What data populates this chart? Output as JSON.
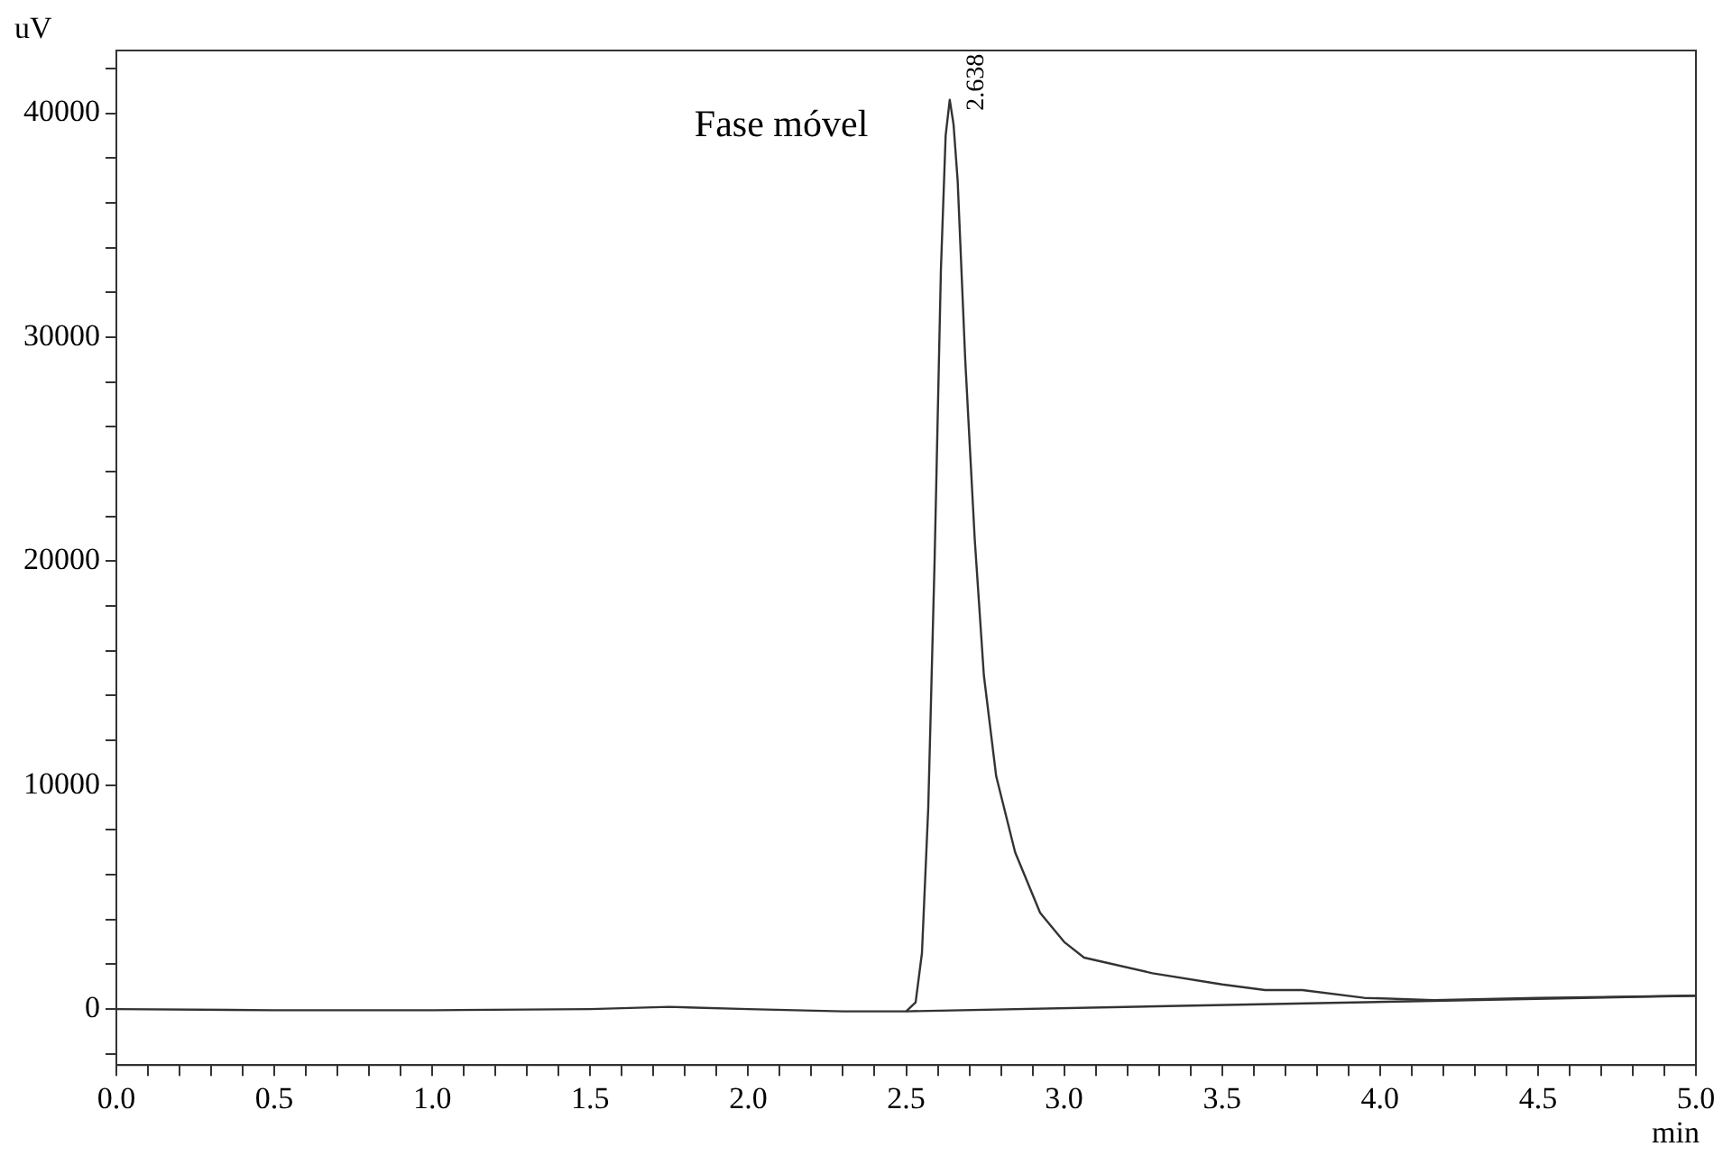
{
  "chart_data": {
    "type": "line",
    "xlabel": "min",
    "ylabel": "uV",
    "annotations": [
      "Fase móvel",
      {
        "text": "2.638",
        "x": 2.638,
        "y": 40600
      }
    ],
    "xlim": [
      0,
      5.0
    ],
    "ylim": [
      -2500,
      42800
    ],
    "xticks": [
      {
        "value": 0,
        "label": "0.0"
      },
      {
        "value": 0.1,
        "label": null
      },
      {
        "value": 0.2,
        "label": null
      },
      {
        "value": 0.3,
        "label": null
      },
      {
        "value": 0.4,
        "label": null
      },
      {
        "value": 0.5,
        "label": "0.5"
      },
      {
        "value": 0.6,
        "label": null
      },
      {
        "value": 0.7,
        "label": null
      },
      {
        "value": 0.8,
        "label": null
      },
      {
        "value": 0.9,
        "label": null
      },
      {
        "value": 1,
        "label": "1.0"
      },
      {
        "value": 1.1,
        "label": null
      },
      {
        "value": 1.2,
        "label": null
      },
      {
        "value": 1.3,
        "label": null
      },
      {
        "value": 1.4,
        "label": null
      },
      {
        "value": 1.5,
        "label": "1.5"
      },
      {
        "value": 1.6,
        "label": null
      },
      {
        "value": 1.7,
        "label": null
      },
      {
        "value": 1.8,
        "label": null
      },
      {
        "value": 1.9,
        "label": null
      },
      {
        "value": 2,
        "label": "2.0"
      },
      {
        "value": 2.1,
        "label": null
      },
      {
        "value": 2.2,
        "label": null
      },
      {
        "value": 2.3,
        "label": null
      },
      {
        "value": 2.4,
        "label": null
      },
      {
        "value": 2.5,
        "label": "2.5"
      },
      {
        "value": 2.6,
        "label": null
      },
      {
        "value": 2.7,
        "label": null
      },
      {
        "value": 2.8,
        "label": null
      },
      {
        "value": 2.9,
        "label": null
      },
      {
        "value": 3,
        "label": "3.0"
      },
      {
        "value": 3.1,
        "label": null
      },
      {
        "value": 3.2,
        "label": null
      },
      {
        "value": 3.3,
        "label": null
      },
      {
        "value": 3.4,
        "label": null
      },
      {
        "value": 3.5,
        "label": "3.5"
      },
      {
        "value": 3.6,
        "label": null
      },
      {
        "value": 3.7,
        "label": null
      },
      {
        "value": 3.8,
        "label": null
      },
      {
        "value": 3.9,
        "label": null
      },
      {
        "value": 4,
        "label": "4.0"
      },
      {
        "value": 4.1,
        "label": null
      },
      {
        "value": 4.2,
        "label": null
      },
      {
        "value": 4.3,
        "label": null
      },
      {
        "value": 4.4,
        "label": null
      },
      {
        "value": 4.5,
        "label": "4.5"
      },
      {
        "value": 4.6,
        "label": null
      },
      {
        "value": 4.7,
        "label": null
      },
      {
        "value": 4.8,
        "label": null
      },
      {
        "value": 4.9,
        "label": null
      },
      {
        "value": 5,
        "label": "5.0"
      }
    ],
    "yticks": [
      {
        "value": -2000,
        "label": null
      },
      0,
      {
        "value": 2000,
        "label": null
      },
      {
        "value": 4000,
        "label": null
      },
      {
        "value": 6000,
        "label": null
      },
      {
        "value": 8000,
        "label": null
      },
      10000,
      {
        "value": 12000,
        "label": null
      },
      {
        "value": 14000,
        "label": null
      },
      {
        "value": 16000,
        "label": null
      },
      {
        "value": 18000,
        "label": null
      },
      20000,
      {
        "value": 22000,
        "label": null
      },
      {
        "value": 24000,
        "label": null
      },
      {
        "value": 26000,
        "label": null
      },
      {
        "value": 28000,
        "label": null
      },
      30000,
      {
        "value": 32000,
        "label": null
      },
      {
        "value": 34000,
        "label": null
      },
      {
        "value": 36000,
        "label": null
      },
      {
        "value": 38000,
        "label": null
      },
      40000,
      {
        "value": 42000,
        "label": null
      }
    ],
    "grid": false,
    "legend": false,
    "marker": "none",
    "line_style": "solid",
    "series": [
      {
        "color": "#333333",
        "x": [
          0,
          0.5,
          1.0,
          1.5,
          1.75,
          2.0,
          2.3,
          2.5,
          2.53,
          2.55,
          2.57,
          2.59,
          2.61,
          2.625,
          2.638,
          2.65,
          2.663,
          2.687,
          2.717,
          2.746,
          2.785,
          2.845,
          2.924,
          3.0,
          3.063,
          3.28,
          3.5,
          3.636,
          3.754,
          3.95,
          4.17,
          4.5,
          5.0
        ],
        "values": [
          0,
          -50,
          -50,
          0,
          100,
          0,
          -100,
          -100,
          300,
          2500,
          9000,
          20000,
          33000,
          39000,
          40600,
          39500,
          37000,
          29000,
          21000,
          14900,
          10400,
          7000,
          4300,
          3000,
          2300,
          1600,
          1100,
          850,
          850,
          500,
          400,
          500,
          600
        ]
      },
      {
        "color": "#333333",
        "x": [
          2.5,
          5.0
        ],
        "values": [
          -100,
          600
        ]
      }
    ]
  }
}
